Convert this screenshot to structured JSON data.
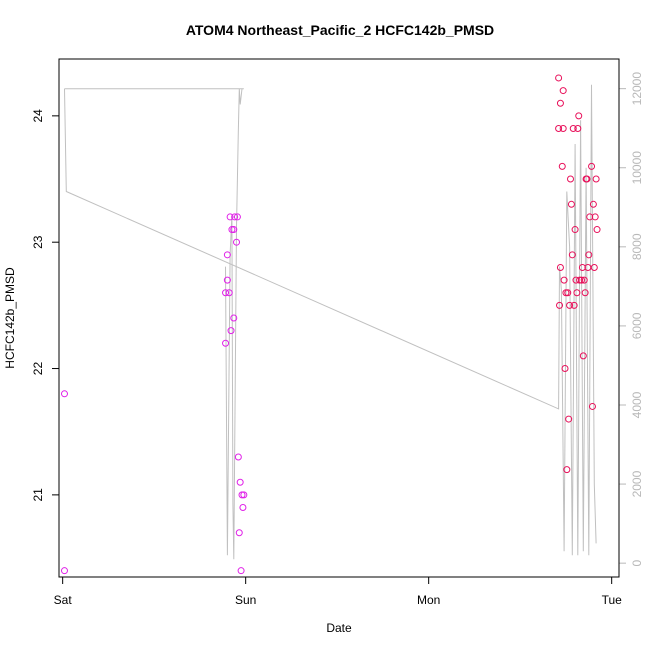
{
  "chart_data": {
    "type": "scatter",
    "title": "ATOM4 Northeast_Pacific_2 HCFC142b_PMSD",
    "xlabel": "Date",
    "ylabel": "HCFC142b_PMSD",
    "x_ticks": [
      {
        "label": "Sat",
        "value": 0
      },
      {
        "label": "Sun",
        "value": 1
      },
      {
        "label": "Mon",
        "value": 2
      },
      {
        "label": "Tue",
        "value": 3
      }
    ],
    "xlim": [
      -0.02,
      3.04
    ],
    "ylim": [
      20.35,
      24.45
    ],
    "y_ticks": [
      21,
      22,
      23,
      24
    ],
    "y2lim": [
      -350,
      12750
    ],
    "y2_ticks": [
      0,
      2000,
      4000,
      6000,
      8000,
      10000,
      12000
    ],
    "colors": {
      "points_low": "#e020e8",
      "points_high": "#e8105a",
      "line": "#c0c0c0",
      "right_axis": "#b8b8b8",
      "frame": "#000000"
    },
    "series": [
      {
        "type": "scatter",
        "values": [
          [
            0.01,
            21.8
          ],
          [
            0.01,
            20.4
          ],
          [
            0.89,
            22.2
          ],
          [
            0.89,
            22.6
          ],
          [
            0.9,
            22.7
          ],
          [
            0.9,
            22.9
          ],
          [
            0.91,
            22.6
          ],
          [
            0.915,
            23.2
          ],
          [
            0.92,
            22.3
          ],
          [
            0.925,
            23.1
          ],
          [
            0.935,
            22.4
          ],
          [
            0.935,
            23.1
          ],
          [
            0.94,
            23.2
          ],
          [
            0.95,
            23.0
          ],
          [
            0.955,
            23.2
          ],
          [
            0.96,
            21.3
          ],
          [
            0.965,
            20.7
          ],
          [
            0.97,
            21.1
          ],
          [
            0.975,
            20.4
          ],
          [
            0.98,
            21.0
          ],
          [
            0.985,
            20.9
          ],
          [
            0.99,
            21.0
          ]
        ]
      },
      {
        "type": "scatter",
        "values": [
          [
            2.71,
            23.9
          ],
          [
            2.71,
            24.3
          ],
          [
            2.715,
            22.5
          ],
          [
            2.72,
            22.8
          ],
          [
            2.72,
            24.1
          ],
          [
            2.73,
            23.6
          ],
          [
            2.735,
            24.2
          ],
          [
            2.735,
            23.9
          ],
          [
            2.74,
            22.7
          ],
          [
            2.745,
            22.0
          ],
          [
            2.75,
            22.6
          ],
          [
            2.755,
            21.2
          ],
          [
            2.76,
            22.6
          ],
          [
            2.765,
            21.6
          ],
          [
            2.77,
            22.5
          ],
          [
            2.775,
            23.5
          ],
          [
            2.78,
            23.3
          ],
          [
            2.785,
            22.9
          ],
          [
            2.79,
            23.9
          ],
          [
            2.795,
            22.5
          ],
          [
            2.8,
            23.1
          ],
          [
            2.805,
            22.7
          ],
          [
            2.81,
            22.6
          ],
          [
            2.815,
            23.9
          ],
          [
            2.82,
            24.0
          ],
          [
            2.825,
            22.7
          ],
          [
            2.835,
            22.7
          ],
          [
            2.84,
            22.8
          ],
          [
            2.845,
            22.1
          ],
          [
            2.85,
            22.7
          ],
          [
            2.855,
            22.6
          ],
          [
            2.86,
            23.5
          ],
          [
            2.865,
            23.5
          ],
          [
            2.87,
            22.8
          ],
          [
            2.875,
            22.9
          ],
          [
            2.88,
            23.2
          ],
          [
            2.89,
            23.6
          ],
          [
            2.895,
            21.7
          ],
          [
            2.9,
            23.3
          ],
          [
            2.905,
            22.8
          ],
          [
            2.91,
            23.2
          ],
          [
            2.915,
            23.5
          ],
          [
            2.92,
            23.1
          ]
        ]
      },
      {
        "type": "line",
        "axis": "right",
        "values": [
          [
            0.01,
            12000
          ],
          [
            0.02,
            9400
          ],
          [
            2.71,
            3900
          ],
          [
            2.715,
            7500
          ],
          [
            2.725,
            6900
          ],
          [
            2.74,
            300
          ],
          [
            2.755,
            9400
          ],
          [
            2.77,
            8000
          ],
          [
            2.785,
            200
          ],
          [
            2.8,
            10600
          ],
          [
            2.815,
            200
          ],
          [
            2.83,
            11200
          ],
          [
            2.845,
            300
          ],
          [
            2.86,
            10000
          ],
          [
            2.875,
            200
          ],
          [
            2.89,
            12100
          ],
          [
            2.905,
            2000
          ],
          [
            2.915,
            500
          ]
        ]
      },
      {
        "type": "line",
        "axis": "right",
        "values": [
          [
            0.89,
            7500
          ],
          [
            0.9,
            200
          ],
          [
            0.915,
            7800
          ],
          [
            0.925,
            8800
          ],
          [
            0.93,
            1500
          ],
          [
            0.935,
            100
          ],
          [
            0.95,
            8500
          ],
          [
            0.955,
            9700
          ],
          [
            0.96,
            10900
          ],
          [
            0.965,
            12000
          ],
          [
            0.97,
            11600
          ],
          [
            0.975,
            11800
          ],
          [
            0.98,
            12000
          ],
          [
            0.99,
            12000
          ],
          [
            0.01,
            12000
          ]
        ]
      }
    ]
  }
}
